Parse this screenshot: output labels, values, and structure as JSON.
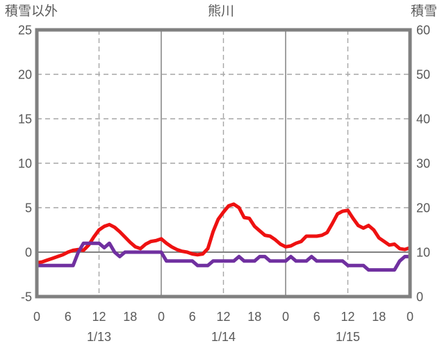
{
  "header": {
    "left_axis_title": "積雪以外",
    "chart_title": "熊川",
    "right_axis_title": "積雪"
  },
  "colors": {
    "non_snow_series": "#ee1111",
    "snow_series": "#7030a0",
    "grid_dashed": "#a6a6a6",
    "axis_border": "#808080",
    "zero_line": "#808080",
    "text": "#595959",
    "background": "#ffffff"
  },
  "chart_data": {
    "type": "line",
    "title": "熊川",
    "x_axis": {
      "unit": "hour",
      "start_hour": 0,
      "end_hour": 72,
      "tick_interval_hours": 6,
      "tick_labels": [
        "0",
        "6",
        "12",
        "18",
        "0",
        "6",
        "12",
        "18",
        "0",
        "6",
        "12",
        "18",
        "0"
      ],
      "day_labels": [
        "1/13",
        "1/14",
        "1/15"
      ],
      "day_label_hours": [
        12,
        36,
        60
      ],
      "dashed_gridline_hours": [
        12,
        36,
        60
      ],
      "solid_gridline_hours": [
        24,
        48
      ]
    },
    "left_axis": {
      "title": "積雪以外",
      "min": -5,
      "max": 25,
      "tick_values": [
        25,
        20,
        15,
        10,
        5,
        0,
        -5
      ],
      "tick_labels": [
        "25",
        "20",
        "15",
        "10",
        "5",
        "0",
        "-5"
      ],
      "dashed_gridline_values": [
        20,
        15,
        10,
        5
      ],
      "zero_line_value": 0
    },
    "right_axis": {
      "title": "積雪",
      "min": 0,
      "max": 60,
      "tick_values": [
        60,
        50,
        40,
        30,
        20,
        10,
        0
      ],
      "tick_labels": [
        "60",
        "50",
        "40",
        "30",
        "20",
        "10",
        "0"
      ]
    },
    "series": [
      {
        "name": "積雪以外",
        "axis": "left",
        "color": "#ee1111",
        "values": [
          -1.2,
          -1.1,
          -0.9,
          -0.7,
          -0.5,
          -0.3,
          0.0,
          0.2,
          0.3,
          0.2,
          0.8,
          1.7,
          2.5,
          2.9,
          3.1,
          2.8,
          2.3,
          1.7,
          1.1,
          0.6,
          0.4,
          0.9,
          1.2,
          1.3,
          1.5,
          1.0,
          0.6,
          0.3,
          0.1,
          0.0,
          -0.2,
          -0.3,
          -0.2,
          0.4,
          2.3,
          3.7,
          4.5,
          5.2,
          5.4,
          5.0,
          3.9,
          3.8,
          2.9,
          2.4,
          1.9,
          1.8,
          1.4,
          0.9,
          0.6,
          0.7,
          1.0,
          1.2,
          1.8,
          1.8,
          1.8,
          1.9,
          2.2,
          3.2,
          4.3,
          4.6,
          4.7,
          3.8,
          3.0,
          2.7,
          3.0,
          2.5,
          1.6,
          1.2,
          0.8,
          0.9,
          0.4,
          0.3,
          0.5
        ]
      },
      {
        "name": "積雪",
        "axis": "right",
        "color": "#7030a0",
        "values": [
          7,
          7,
          7,
          7,
          7,
          7,
          7,
          7,
          10,
          12,
          12,
          12,
          12,
          11,
          12,
          10,
          9,
          10,
          10,
          10,
          10,
          10,
          10,
          10,
          10,
          8,
          8,
          8,
          8,
          8,
          8,
          7,
          7,
          7,
          8,
          8,
          8,
          8,
          8,
          9,
          8,
          8,
          8,
          9,
          9,
          8,
          8,
          8,
          8,
          9,
          8,
          8,
          8,
          9,
          8,
          8,
          8,
          8,
          8,
          8,
          7,
          7,
          7,
          7,
          6,
          6,
          6,
          6,
          6,
          6,
          8,
          9,
          9
        ]
      }
    ],
    "legend": "none",
    "grid": "dashed horizontal every 5 left-units / 10 right-units; dashed vertical at 12:00 each day; solid vertical at day boundaries"
  }
}
